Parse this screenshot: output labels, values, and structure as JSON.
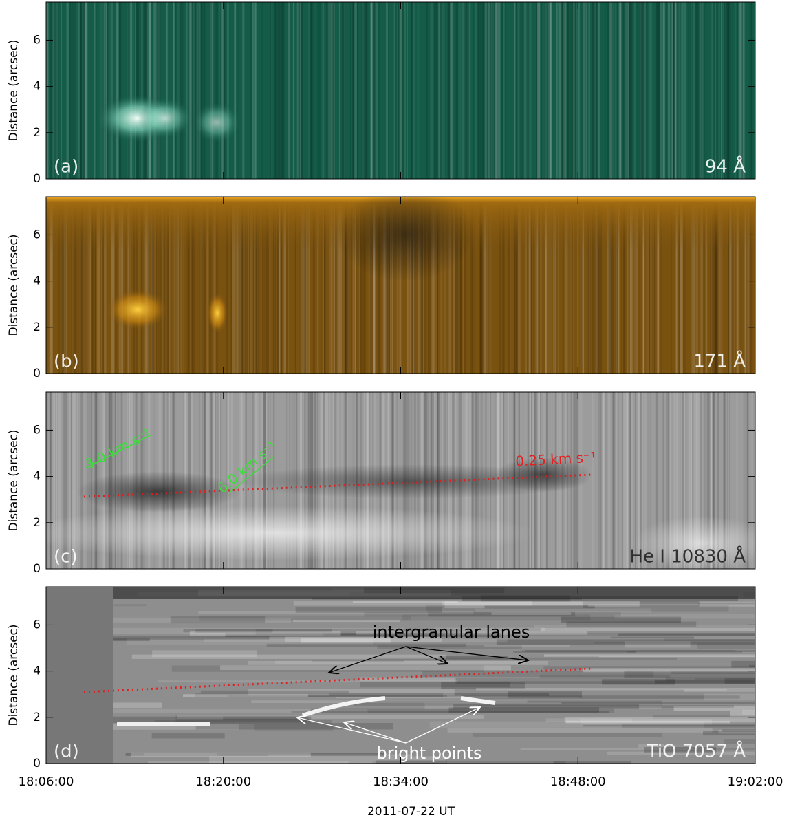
{
  "chart_data": [
    {
      "type": "heatmap",
      "label": "(a)",
      "channel": "94 Å",
      "ylabel": "Distance (arcsec)",
      "color": "#145c48",
      "ylim": [
        0,
        7.65
      ],
      "yticks": [
        0,
        2,
        4,
        6
      ]
    },
    {
      "type": "heatmap",
      "label": "(b)",
      "channel": "171 Å",
      "ylabel": "Distance (arcsec)",
      "color": "#7a5210",
      "ylim": [
        0,
        7.65
      ],
      "yticks": [
        0,
        2,
        4,
        6
      ]
    },
    {
      "type": "heatmap",
      "label": "(c)",
      "channel": "He I 10830 Å",
      "ylabel": "Distance (arcsec)",
      "color": "#9c9c9c",
      "ylim": [
        0,
        7.65
      ],
      "yticks": [
        0,
        2,
        4,
        6
      ],
      "annotations": [
        "3.0 km s⁻¹",
        "6.0 km s⁻¹",
        "0.25 km s⁻¹"
      ]
    },
    {
      "type": "heatmap",
      "label": "(d)",
      "channel": "TiO 7057 Å",
      "ylabel": "Distance (arcsec)",
      "color": "#8e8e8e",
      "ylim": [
        0,
        7.65
      ],
      "yticks": [
        0,
        2,
        4,
        6
      ],
      "annotations": [
        "intergranular lanes",
        "bright points"
      ],
      "xlim": [
        "18:06:00",
        "19:02:00"
      ],
      "xticks": [
        "18:06:00",
        "18:20:00",
        "18:34:00",
        "18:48:00",
        "19:02:00"
      ],
      "xlabel": "2011-07-22 UT"
    }
  ]
}
